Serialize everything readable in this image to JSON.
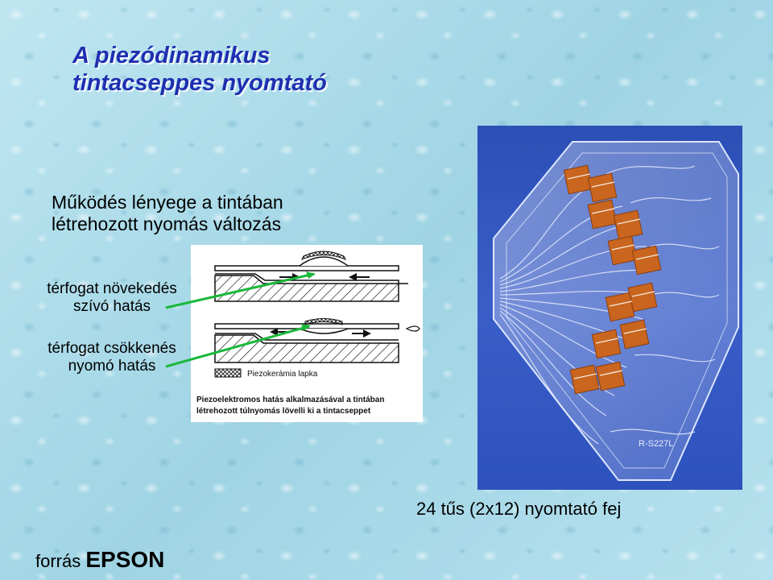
{
  "title": {
    "line1": "A piezódinamikus",
    "line2": "tintacseppes nyomtató"
  },
  "principle": {
    "line1": "Működés lényege a tintában",
    "line2": "létrehozott nyomás változás"
  },
  "labels": {
    "volume_increase": "térfogat növekedés",
    "suction": "szívó hatás",
    "volume_decrease": "térfogat csökkenés",
    "pressure": "nyomó hatás"
  },
  "diagram": {
    "legend": "Piezokerámia lapka",
    "caption_line1": "Piezoelektromos hatás alkalmazásával a tintában",
    "caption_line2": "létrehozott túlnyomás lövelli ki a tintacseppet"
  },
  "photo": {
    "caption": "24 tűs (2x12) nyomtató fej",
    "part_number": "R-S227L"
  },
  "source": {
    "label": "forrás",
    "brand": "EPSON"
  },
  "colors": {
    "title": "#1f2fb0",
    "arrow": "#1ab83a",
    "photo_background": "#2f55bd",
    "piezo_element": "#c9651f"
  }
}
